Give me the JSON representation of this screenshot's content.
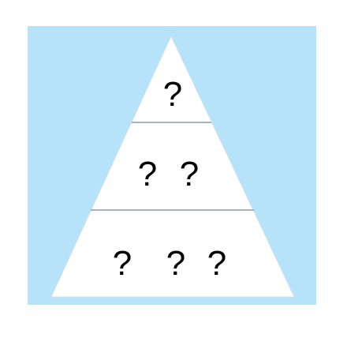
{
  "colors": {
    "background_panel": "#b7e3fa",
    "pyramid_fill": "#ffffff",
    "divider": "#8a9aa6",
    "text": "#000000"
  },
  "pyramid": {
    "tiers": [
      {
        "items": [
          "?"
        ]
      },
      {
        "items": [
          "?",
          "?"
        ]
      },
      {
        "items": [
          "?",
          "?",
          "?"
        ]
      }
    ]
  }
}
